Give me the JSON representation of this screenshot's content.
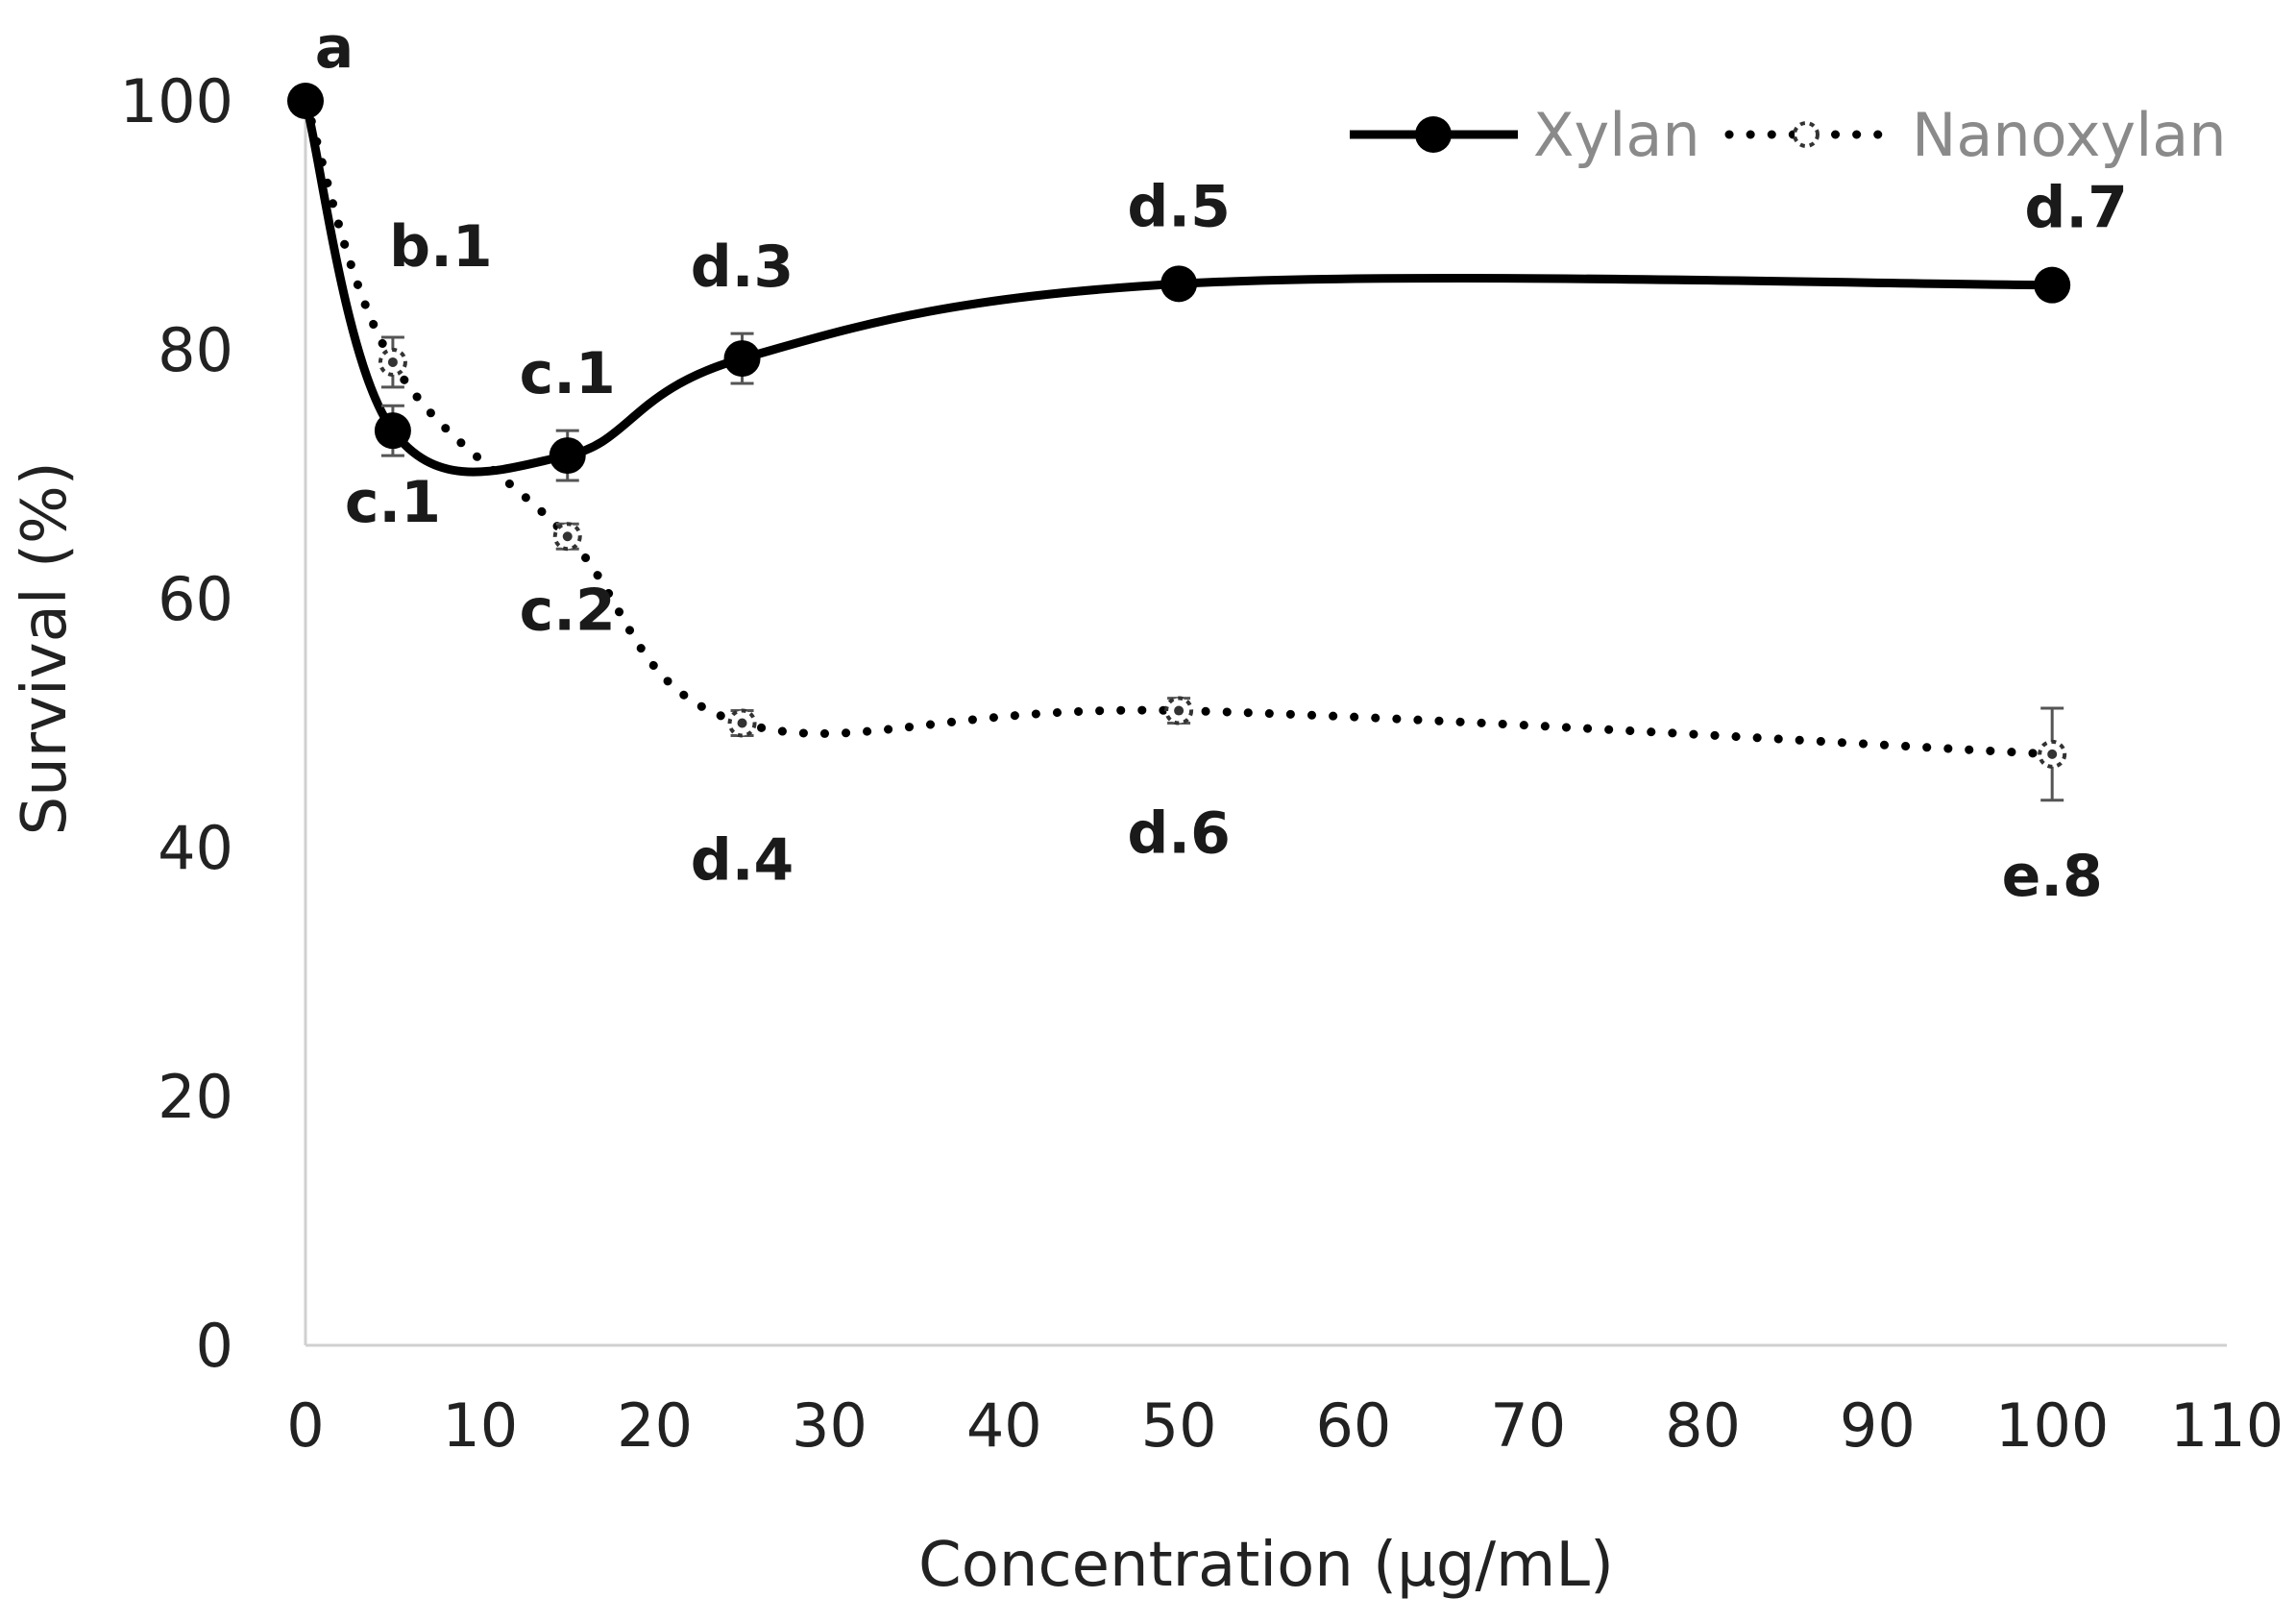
{
  "chart_data": {
    "type": "line",
    "title": "",
    "xlabel": "Concentration (µg/mL)",
    "ylabel": "Survival (%)",
    "xlim": [
      0,
      110
    ],
    "ylim": [
      0,
      100
    ],
    "xticks": [
      0,
      10,
      20,
      30,
      40,
      50,
      60,
      70,
      80,
      90,
      100,
      110
    ],
    "yticks": [
      0,
      20,
      40,
      60,
      80,
      100
    ],
    "grid": false,
    "legend_position": "top-right",
    "series": [
      {
        "name": "Xylan",
        "style": "solid",
        "color": "#000000",
        "x": [
          0,
          5,
          15,
          25,
          50,
          100
        ],
        "y": [
          100,
          73.5,
          71.5,
          79.3,
          85.3,
          85.2
        ],
        "error": [
          0,
          2,
          2,
          2,
          0.8,
          0.8
        ],
        "labels": [
          "a",
          "c.1",
          "c.1",
          "d.3",
          "d.5",
          "d.7"
        ]
      },
      {
        "name": "Nanoxylan",
        "style": "dotted",
        "color": "#000000",
        "x": [
          0,
          5,
          15,
          25,
          50,
          100
        ],
        "y": [
          100,
          79,
          65,
          50,
          51,
          47.5
        ],
        "error": [
          0,
          2,
          1,
          1,
          1,
          3.7
        ],
        "labels": [
          "",
          "b.1",
          "c.2",
          "d.4",
          "d.6",
          "e.8"
        ]
      }
    ]
  }
}
